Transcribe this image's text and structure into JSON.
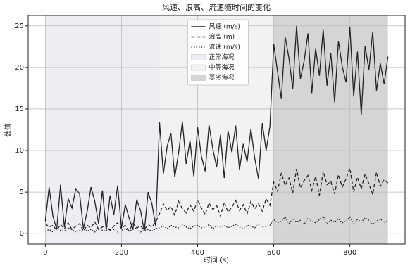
{
  "chart_data": {
    "type": "line",
    "title": "风速、浪高、流速随时间的变化",
    "xlabel": "时间 (s)",
    "ylabel": "数值",
    "x": [
      0,
      10,
      20,
      30,
      40,
      50,
      60,
      70,
      80,
      90,
      100,
      110,
      120,
      130,
      140,
      150,
      160,
      170,
      180,
      190,
      200,
      210,
      220,
      230,
      240,
      250,
      260,
      270,
      280,
      290,
      300,
      310,
      320,
      330,
      340,
      350,
      360,
      370,
      380,
      390,
      400,
      410,
      420,
      430,
      440,
      450,
      460,
      470,
      480,
      490,
      500,
      510,
      520,
      530,
      540,
      550,
      560,
      570,
      580,
      590,
      600,
      610,
      620,
      630,
      640,
      650,
      660,
      670,
      680,
      690,
      700,
      710,
      720,
      730,
      740,
      750,
      760,
      770,
      780,
      790,
      800,
      810,
      820,
      830,
      840,
      850,
      860,
      870,
      880,
      890,
      900
    ],
    "series": [
      {
        "name": "风速 (m/s)",
        "color": "#222222",
        "dash": "solid",
        "values": [
          1.5,
          5.6,
          2.1,
          0.5,
          5.9,
          0.8,
          4.2,
          3.1,
          5.4,
          4.8,
          0.6,
          2.7,
          5.6,
          3.9,
          1.2,
          5.2,
          0.4,
          4.6,
          2.3,
          5.8,
          0.7,
          3.5,
          1.9,
          0.5,
          4.1,
          2.8,
          0.3,
          5.0,
          3.6,
          0.9,
          13.4,
          7.2,
          10.5,
          12.1,
          6.8,
          9.7,
          13.5,
          8.4,
          11.2,
          6.9,
          12.8,
          9.3,
          7.5,
          13.1,
          10.2,
          8.0,
          11.9,
          6.7,
          12.4,
          9.8,
          13.0,
          7.7,
          10.8,
          8.6,
          12.6,
          9.1,
          6.6,
          13.3,
          10.0,
          12.9,
          22.8,
          19.5,
          16.2,
          23.7,
          21.1,
          17.4,
          25.0,
          18.6,
          20.8,
          24.1,
          16.9,
          22.3,
          19.0,
          24.6,
          17.8,
          21.7,
          15.8,
          23.2,
          20.1,
          18.2,
          24.9,
          16.5,
          21.9,
          14.3,
          22.6,
          19.7,
          24.3,
          17.2,
          20.5,
          18.0,
          21.3
        ]
      },
      {
        "name": "浪高 (m)",
        "color": "#222222",
        "dash": "dashed",
        "values": [
          1.2,
          0.8,
          1.0,
          0.4,
          1.1,
          0.6,
          1.3,
          0.5,
          0.9,
          1.2,
          0.3,
          1.0,
          0.7,
          1.4,
          0.5,
          0.8,
          1.1,
          0.4,
          0.9,
          1.3,
          0.6,
          1.0,
          0.3,
          1.2,
          0.7,
          0.9,
          0.5,
          1.1,
          0.8,
          1.4,
          2.4,
          3.6,
          2.8,
          3.3,
          2.2,
          3.9,
          3.0,
          2.5,
          3.5,
          2.7,
          4.1,
          3.1,
          2.3,
          3.7,
          2.9,
          3.4,
          2.1,
          3.8,
          2.6,
          3.2,
          4.0,
          2.8,
          3.5,
          2.4,
          3.9,
          3.0,
          3.6,
          2.7,
          4.2,
          3.4,
          6.2,
          5.1,
          7.3,
          5.8,
          6.7,
          4.9,
          7.8,
          5.5,
          6.4,
          7.0,
          5.2,
          6.9,
          4.6,
          7.5,
          5.9,
          6.3,
          4.8,
          7.1,
          5.6,
          6.6,
          7.9,
          5.0,
          6.8,
          5.4,
          7.2,
          6.0,
          4.7,
          7.4,
          5.7,
          6.5,
          6.1
        ]
      },
      {
        "name": "流速 (m/s)",
        "color": "#222222",
        "dash": "dotted",
        "values": [
          0.3,
          0.5,
          0.2,
          0.6,
          0.4,
          0.3,
          0.7,
          0.5,
          0.2,
          0.4,
          0.6,
          0.3,
          0.5,
          0.2,
          0.7,
          0.4,
          0.3,
          0.6,
          0.5,
          0.2,
          0.4,
          0.6,
          0.3,
          0.5,
          0.7,
          0.2,
          0.4,
          0.5,
          0.3,
          0.6,
          0.7,
          0.9,
          0.6,
          1.0,
          0.8,
          0.7,
          1.1,
          0.8,
          0.6,
          0.9,
          1.0,
          0.7,
          0.8,
          1.1,
          0.6,
          0.9,
          0.8,
          1.0,
          0.7,
          0.9,
          1.1,
          0.8,
          0.6,
          1.0,
          0.9,
          0.7,
          1.1,
          0.8,
          0.9,
          1.0,
          1.7,
          1.3,
          1.5,
          2.0,
          1.2,
          1.8,
          1.4,
          1.6,
          1.1,
          1.9,
          1.5,
          1.3,
          1.7,
          2.1,
          1.2,
          1.6,
          1.4,
          1.8,
          1.3,
          1.5,
          2.0,
          1.2,
          1.7,
          1.4,
          1.9,
          1.6,
          1.1,
          1.5,
          1.8,
          1.3,
          1.6
        ]
      }
    ],
    "regions": [
      {
        "name": "正常海况",
        "start": 0,
        "end": 300,
        "color": "#eceef3"
      },
      {
        "name": "中等海况",
        "start": 300,
        "end": 600,
        "color": "#f2f2f2"
      },
      {
        "name": "恶劣海况",
        "start": 600,
        "end": 900,
        "color": "#d5d5d7"
      }
    ],
    "xlim": [
      -45,
      945
    ],
    "xticks": [
      0,
      200,
      400,
      600,
      800
    ],
    "ylim": [
      -1.25,
      26.25
    ],
    "yticks": [
      0,
      5,
      10,
      15,
      20,
      25
    ],
    "grid": true,
    "legend": "upper center"
  }
}
